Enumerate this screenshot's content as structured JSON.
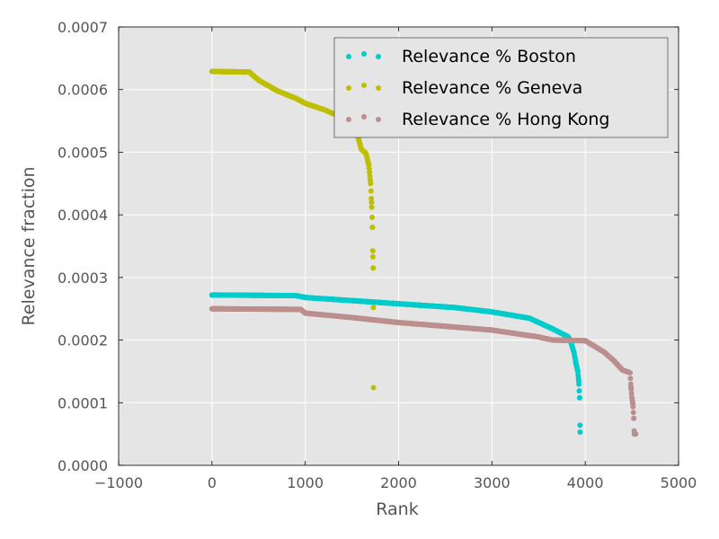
{
  "chart_data": {
    "type": "scatter",
    "xlabel": "Rank",
    "ylabel": "Relevance fraction",
    "xlim": [
      -1000,
      5000
    ],
    "ylim": [
      0.0,
      0.0007
    ],
    "xticks": [
      -1000,
      0,
      1000,
      2000,
      3000,
      4000,
      5000
    ],
    "xtick_labels": [
      "−1000",
      "0",
      "1000",
      "2000",
      "3000",
      "4000",
      "5000"
    ],
    "yticks": [
      0.0,
      0.0001,
      0.0002,
      0.0003,
      0.0004,
      0.0005,
      0.0006,
      0.0007
    ],
    "ytick_labels": [
      "0.0000",
      "0.0001",
      "0.0002",
      "0.0003",
      "0.0004",
      "0.0005",
      "0.0006",
      "0.0007"
    ],
    "grid": true,
    "legend_position": "top-right",
    "series": [
      {
        "name": "Relevance % Boston",
        "color": "#00cccc",
        "knots": [
          [
            0,
            0.000272
          ],
          [
            900,
            0.000271
          ],
          [
            1000,
            0.000268
          ],
          [
            2000,
            0.000258
          ],
          [
            2600,
            0.000252
          ],
          [
            3000,
            0.000245
          ],
          [
            3400,
            0.000235
          ],
          [
            3650,
            0.000218
          ],
          [
            3820,
            0.000205
          ],
          [
            3850,
            0.000195
          ],
          [
            3880,
            0.00018
          ],
          [
            3900,
            0.000163
          ],
          [
            3920,
            0.00015
          ],
          [
            3930,
            0.000135
          ],
          [
            3940,
            0.000108
          ],
          [
            3945,
            5.3e-05
          ]
        ],
        "count": 3945,
        "outliers": []
      },
      {
        "name": "Relevance % Geneva",
        "color": "#bfbf00",
        "knots": [
          [
            0,
            0.000629
          ],
          [
            400,
            0.000628
          ],
          [
            500,
            0.000615
          ],
          [
            700,
            0.000598
          ],
          [
            900,
            0.000586
          ],
          [
            1000,
            0.000578
          ],
          [
            1200,
            0.000568
          ],
          [
            1400,
            0.000555
          ],
          [
            1550,
            0.000533
          ],
          [
            1600,
            0.000505
          ],
          [
            1650,
            0.000498
          ],
          [
            1680,
            0.00048
          ],
          [
            1700,
            0.00045
          ],
          [
            1710,
            0.00042
          ],
          [
            1720,
            0.00038
          ],
          [
            1725,
            0.000333
          ],
          [
            1728,
            0.000315
          ],
          [
            1730,
            0.000252
          ]
        ],
        "count": 1730,
        "outliers": [
          [
            1731,
            0.000124
          ]
        ]
      },
      {
        "name": "Relevance % Hong Kong",
        "color": "#bc8f8f",
        "knots": [
          [
            0,
            0.00025
          ],
          [
            950,
            0.000249
          ],
          [
            1000,
            0.000243
          ],
          [
            1500,
            0.000236
          ],
          [
            2000,
            0.000228
          ],
          [
            2500,
            0.000222
          ],
          [
            3000,
            0.000216
          ],
          [
            3500,
            0.000205
          ],
          [
            3650,
            0.0002
          ],
          [
            4000,
            0.000199
          ],
          [
            4100,
            0.00019
          ],
          [
            4200,
            0.000181
          ],
          [
            4300,
            0.000168
          ],
          [
            4400,
            0.000152
          ],
          [
            4480,
            0.000148
          ],
          [
            4490,
            0.000125
          ],
          [
            4500,
            0.000108
          ],
          [
            4510,
            9.8e-05
          ],
          [
            4520,
            7.5e-05
          ],
          [
            4525,
            5e-05
          ],
          [
            4540,
            5e-05
          ]
        ],
        "count": 4540,
        "outliers": []
      }
    ]
  }
}
